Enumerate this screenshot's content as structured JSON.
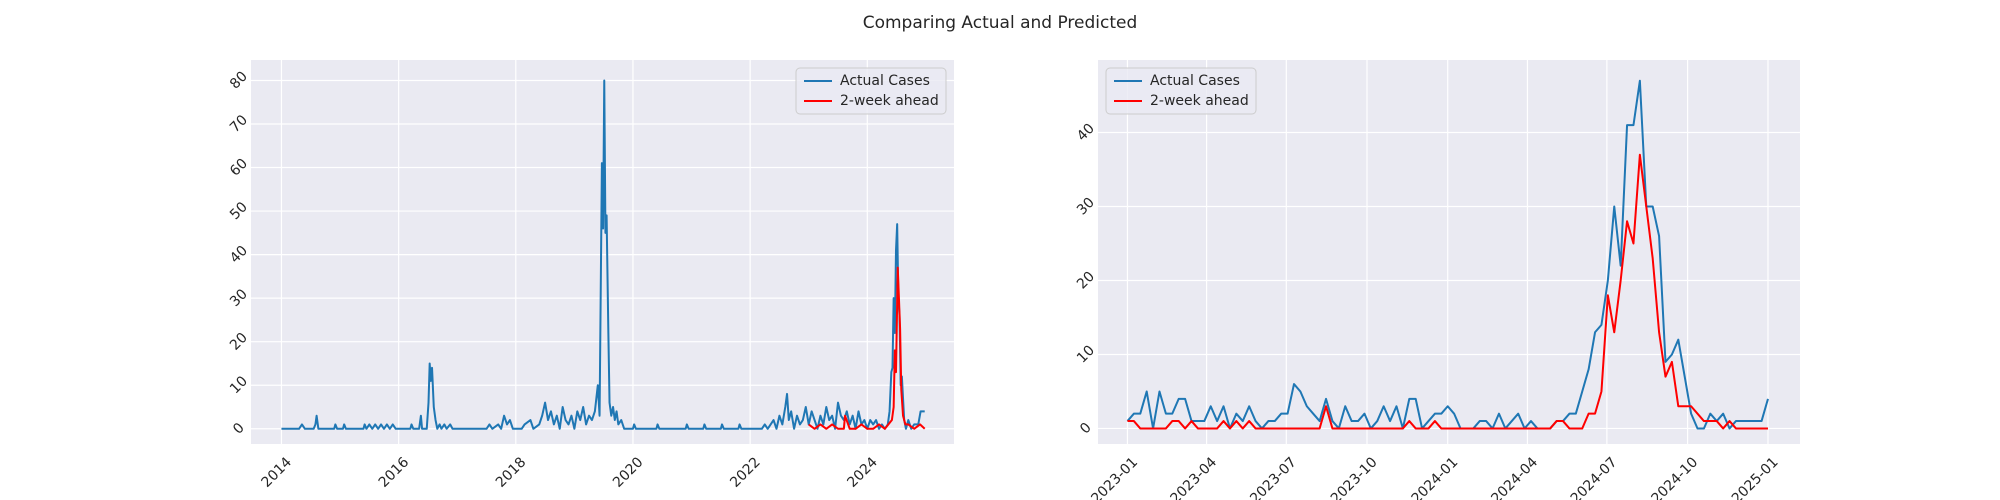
{
  "title": "Comparing Actual and Predicted",
  "chart_data": [
    {
      "type": "line",
      "legend": "upper right",
      "grid": true,
      "xlim": [
        2013.48,
        2025.48
      ],
      "xticks": [
        2014,
        2016,
        2018,
        2020,
        2022,
        2024
      ],
      "ylim": [
        -3.5,
        84.7
      ],
      "yticks": [
        0,
        10,
        20,
        30,
        40,
        50,
        60,
        70,
        80
      ],
      "series": [
        {
          "name": "Actual Cases",
          "color": "#1f77b4",
          "x": [
            2014.0,
            2014.3,
            2014.35,
            2014.4,
            2014.55,
            2014.58,
            2014.6,
            2014.63,
            2014.9,
            2014.92,
            2014.95,
            2015.05,
            2015.07,
            2015.1,
            2015.4,
            2015.42,
            2015.45,
            2015.5,
            2015.55,
            2015.6,
            2015.65,
            2015.7,
            2015.75,
            2015.8,
            2015.85,
            2015.9,
            2015.95,
            2016.2,
            2016.22,
            2016.25,
            2016.35,
            2016.38,
            2016.4,
            2016.48,
            2016.51,
            2016.53,
            2016.55,
            2016.57,
            2016.6,
            2016.63,
            2016.66,
            2016.7,
            2016.73,
            2016.78,
            2016.82,
            2016.88,
            2016.92,
            2017.5,
            2017.55,
            2017.6,
            2017.7,
            2017.75,
            2017.8,
            2017.85,
            2017.9,
            2017.95,
            2018.1,
            2018.15,
            2018.25,
            2018.3,
            2018.4,
            2018.45,
            2018.5,
            2018.55,
            2018.6,
            2018.65,
            2018.7,
            2018.75,
            2018.8,
            2018.85,
            2018.9,
            2018.95,
            2019.0,
            2019.05,
            2019.1,
            2019.15,
            2019.2,
            2019.25,
            2019.3,
            2019.35,
            2019.4,
            2019.43,
            2019.47,
            2019.49,
            2019.51,
            2019.53,
            2019.55,
            2019.58,
            2019.6,
            2019.63,
            2019.66,
            2019.69,
            2019.72,
            2019.75,
            2019.8,
            2019.85,
            2020.0,
            2020.02,
            2020.05,
            2020.4,
            2020.42,
            2020.45,
            2020.9,
            2020.92,
            2020.95,
            2021.2,
            2021.22,
            2021.25,
            2021.5,
            2021.52,
            2021.55,
            2021.8,
            2021.82,
            2021.85,
            2022.2,
            2022.25,
            2022.3,
            2022.4,
            2022.45,
            2022.5,
            2022.55,
            2022.6,
            2022.63,
            2022.66,
            2022.7,
            2022.75,
            2022.8,
            2022.85,
            2022.9,
            2022.95,
            2023.0,
            2023.05,
            2023.1,
            2023.15,
            2023.2,
            2023.25,
            2023.3,
            2023.35,
            2023.4,
            2023.45,
            2023.5,
            2023.55,
            2023.6,
            2023.65,
            2023.7,
            2023.75,
            2023.8,
            2023.85,
            2023.9,
            2023.95,
            2024.0,
            2024.05,
            2024.1,
            2024.15,
            2024.2,
            2024.25,
            2024.3,
            2024.35,
            2024.38,
            2024.41,
            2024.43,
            2024.45,
            2024.47,
            2024.49,
            2024.51,
            2024.53,
            2024.55,
            2024.57,
            2024.59,
            2024.61,
            2024.63,
            2024.66,
            2024.7,
            2024.75,
            2024.8,
            2024.87,
            2024.91,
            2024.98
          ],
          "values": [
            0,
            0,
            1,
            0,
            0,
            1,
            3,
            0,
            0,
            1,
            0,
            0,
            1,
            0,
            0,
            1,
            0,
            1,
            0,
            1,
            0,
            1,
            0,
            1,
            0,
            1,
            0,
            0,
            1,
            0,
            0,
            3,
            0,
            0,
            6,
            15,
            11,
            14,
            5,
            2,
            0,
            1,
            0,
            1,
            0,
            1,
            0,
            0,
            1,
            0,
            1,
            0,
            3,
            1,
            2,
            0,
            0,
            1,
            2,
            0,
            1,
            3,
            6,
            2,
            4,
            1,
            3,
            0,
            5,
            2,
            1,
            3,
            0,
            4,
            2,
            5,
            1,
            3,
            2,
            4,
            10,
            3,
            61,
            46,
            80,
            45,
            49,
            22,
            6,
            3,
            5,
            2,
            4,
            1,
            2,
            0,
            0,
            1,
            0,
            0,
            1,
            0,
            0,
            1,
            0,
            0,
            1,
            0,
            0,
            1,
            0,
            0,
            1,
            0,
            0,
            1,
            0,
            2,
            0,
            3,
            1,
            5,
            8,
            2,
            4,
            0,
            3,
            1,
            2,
            5,
            1,
            4,
            2,
            0,
            3,
            1,
            5,
            2,
            3,
            0,
            6,
            3,
            2,
            4,
            1,
            3,
            0,
            4,
            1,
            2,
            0,
            2,
            1,
            2,
            0,
            1,
            0,
            1,
            4,
            13,
            14,
            30,
            22,
            41,
            47,
            30,
            26,
            10,
            12,
            7,
            2,
            0,
            2,
            0,
            1,
            1,
            4,
            4
          ]
        },
        {
          "name": "2-week ahead",
          "color": "#ff0000",
          "x": [
            2023.0,
            2023.1,
            2023.2,
            2023.3,
            2023.4,
            2023.5,
            2023.6,
            2023.62,
            2023.7,
            2023.8,
            2023.9,
            2024.0,
            2024.1,
            2024.2,
            2024.3,
            2024.42,
            2024.45,
            2024.47,
            2024.49,
            2024.52,
            2024.54,
            2024.56,
            2024.58,
            2024.61,
            2024.65,
            2024.7,
            2024.8,
            2024.9,
            2024.98
          ],
          "values": [
            1,
            0,
            1,
            0,
            1,
            0,
            0,
            3,
            0,
            0,
            1,
            0,
            0,
            1,
            0,
            2,
            5,
            18,
            13,
            37,
            30,
            23,
            9,
            3,
            1,
            1,
            0,
            1,
            0
          ]
        }
      ]
    },
    {
      "type": "line",
      "legend": "upper left",
      "grid": true,
      "xlim": [
        2022.908,
        2025.1
      ],
      "xticks": [
        {
          "value": 2023.0,
          "label": "2023-01"
        },
        {
          "value": 2023.247,
          "label": "2023-04"
        },
        {
          "value": 2023.496,
          "label": "2023-07"
        },
        {
          "value": 2023.748,
          "label": "2023-10"
        },
        {
          "value": 2024.0,
          "label": "2024-01"
        },
        {
          "value": 2024.249,
          "label": "2024-04"
        },
        {
          "value": 2024.497,
          "label": "2024-07"
        },
        {
          "value": 2024.749,
          "label": "2024-10"
        },
        {
          "value": 2025.0,
          "label": "2025-01"
        }
      ],
      "ylim": [
        -2.1,
        49.8
      ],
      "yticks": [
        0,
        10,
        20,
        30,
        40
      ],
      "series": [
        {
          "name": "Actual Cases",
          "color": "#1f77b4",
          "x": [
            2023.0,
            2023.02,
            2023.04,
            2023.06,
            2023.08,
            2023.1,
            2023.12,
            2023.14,
            2023.16,
            2023.18,
            2023.2,
            2023.22,
            2023.24,
            2023.26,
            2023.28,
            2023.3,
            2023.32,
            2023.34,
            2023.36,
            2023.38,
            2023.4,
            2023.42,
            2023.44,
            2023.46,
            2023.48,
            2023.5,
            2023.52,
            2023.54,
            2023.56,
            2023.58,
            2023.6,
            2023.62,
            2023.64,
            2023.66,
            2023.68,
            2023.7,
            2023.72,
            2023.74,
            2023.76,
            2023.78,
            2023.8,
            2023.82,
            2023.84,
            2023.86,
            2023.88,
            2023.9,
            2023.92,
            2023.94,
            2023.96,
            2023.98,
            2024.0,
            2024.02,
            2024.04,
            2024.06,
            2024.08,
            2024.1,
            2024.12,
            2024.14,
            2024.16,
            2024.18,
            2024.2,
            2024.22,
            2024.24,
            2024.26,
            2024.28,
            2024.3,
            2024.32,
            2024.34,
            2024.36,
            2024.38,
            2024.4,
            2024.42,
            2024.44,
            2024.46,
            2024.48,
            2024.5,
            2024.52,
            2024.54,
            2024.56,
            2024.58,
            2024.6,
            2024.62,
            2024.64,
            2024.66,
            2024.68,
            2024.7,
            2024.72,
            2024.74,
            2024.76,
            2024.78,
            2024.8,
            2024.82,
            2024.84,
            2024.86,
            2024.88,
            2024.9,
            2024.92,
            2024.94,
            2024.96,
            2024.98,
            2025.0
          ],
          "values": [
            1,
            2,
            2,
            5,
            0,
            5,
            2,
            2,
            4,
            4,
            1,
            1,
            1,
            3,
            1,
            3,
            0,
            2,
            1,
            3,
            1,
            0,
            1,
            1,
            2,
            2,
            6,
            5,
            3,
            2,
            1,
            4,
            1,
            0,
            3,
            1,
            1,
            2,
            0,
            1,
            3,
            1,
            3,
            0,
            4,
            4,
            0,
            1,
            2,
            2,
            3,
            2,
            0,
            0,
            0,
            1,
            1,
            0,
            2,
            0,
            1,
            2,
            0,
            1,
            0,
            0,
            0,
            1,
            1,
            2,
            2,
            5,
            8,
            13,
            14,
            20,
            30,
            22,
            41,
            41,
            47,
            30,
            30,
            26,
            9,
            10,
            12,
            7,
            2,
            0,
            0,
            2,
            1,
            2,
            0,
            1,
            1,
            1,
            1,
            1,
            4
          ]
        },
        {
          "name": "2-week ahead",
          "color": "#ff0000",
          "x": [
            2023.0,
            2023.02,
            2023.04,
            2023.06,
            2023.08,
            2023.1,
            2023.12,
            2023.14,
            2023.16,
            2023.18,
            2023.2,
            2023.22,
            2023.24,
            2023.26,
            2023.28,
            2023.3,
            2023.32,
            2023.34,
            2023.36,
            2023.38,
            2023.4,
            2023.42,
            2023.44,
            2023.46,
            2023.48,
            2023.5,
            2023.52,
            2023.54,
            2023.56,
            2023.58,
            2023.6,
            2023.62,
            2023.64,
            2023.66,
            2023.68,
            2023.7,
            2023.72,
            2023.74,
            2023.76,
            2023.78,
            2023.8,
            2023.82,
            2023.84,
            2023.86,
            2023.88,
            2023.9,
            2023.92,
            2023.94,
            2023.96,
            2023.98,
            2024.0,
            2024.02,
            2024.04,
            2024.06,
            2024.08,
            2024.1,
            2024.12,
            2024.14,
            2024.16,
            2024.18,
            2024.2,
            2024.22,
            2024.24,
            2024.26,
            2024.28,
            2024.3,
            2024.32,
            2024.34,
            2024.36,
            2024.38,
            2024.4,
            2024.42,
            2024.44,
            2024.46,
            2024.48,
            2024.5,
            2024.52,
            2024.54,
            2024.56,
            2024.58,
            2024.6,
            2024.62,
            2024.64,
            2024.66,
            2024.68,
            2024.7,
            2024.72,
            2024.74,
            2024.76,
            2024.78,
            2024.8,
            2024.82,
            2024.84,
            2024.86,
            2024.88,
            2024.9,
            2024.92,
            2024.94,
            2024.96,
            2024.98,
            2025.0
          ],
          "values": [
            1,
            1,
            0,
            0,
            0,
            0,
            0,
            1,
            1,
            0,
            1,
            0,
            0,
            0,
            0,
            1,
            0,
            1,
            0,
            1,
            0,
            0,
            0,
            0,
            0,
            0,
            0,
            0,
            0,
            0,
            0,
            3,
            0,
            0,
            0,
            0,
            0,
            0,
            0,
            0,
            0,
            0,
            0,
            0,
            1,
            0,
            0,
            0,
            1,
            0,
            0,
            0,
            0,
            0,
            0,
            0,
            0,
            0,
            0,
            0,
            0,
            0,
            0,
            0,
            0,
            0,
            0,
            1,
            1,
            0,
            0,
            0,
            2,
            2,
            5,
            18,
            13,
            20,
            28,
            25,
            37,
            30,
            23,
            13,
            7,
            9,
            3,
            3,
            3,
            2,
            1,
            1,
            1,
            0,
            1,
            0,
            0,
            0,
            0,
            0,
            0
          ]
        }
      ]
    }
  ]
}
